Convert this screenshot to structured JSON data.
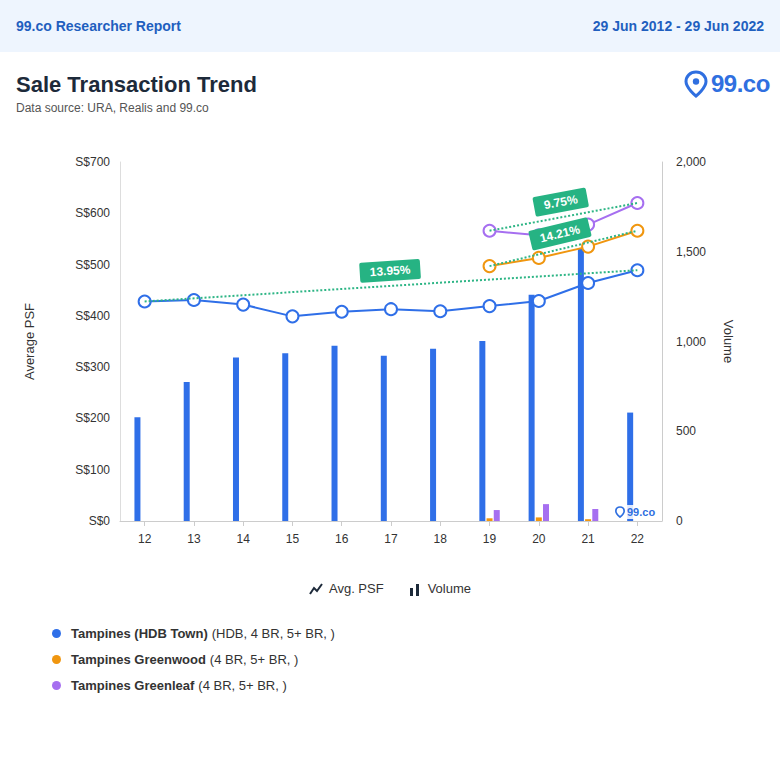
{
  "chart_data": {
    "type": "line",
    "header": {
      "report": "99.co Researcher Report",
      "period": "29 Jun 2012 - 29 Jun 2022"
    },
    "title": "Sale Transaction Trend",
    "subtitle": "Data source: URA, Realis and 99.co",
    "logo": "99.co",
    "watermark": "99.co",
    "legend_items": [
      "Avg. PSF",
      "Volume"
    ],
    "y_label": "Average PSF",
    "y2_label": "Volume",
    "categories": [
      "12",
      "13",
      "14",
      "15",
      "16",
      "17",
      "18",
      "19",
      "20",
      "21",
      "22"
    ],
    "ylim": [
      0,
      700
    ],
    "yticks": [
      {
        "value": 0,
        "label": "S$0"
      },
      {
        "value": 100,
        "label": "S$100"
      },
      {
        "value": 200,
        "label": "S$200"
      },
      {
        "value": 300,
        "label": "S$300"
      },
      {
        "value": 400,
        "label": "S$400"
      },
      {
        "value": 500,
        "label": "S$500"
      },
      {
        "value": 600,
        "label": "S$600"
      },
      {
        "value": 700,
        "label": "S$700"
      }
    ],
    "y2lim": [
      0,
      2000
    ],
    "y2ticks": [
      0,
      500,
      {
        "value": 1000,
        "label": "1,000"
      },
      {
        "value": 1500,
        "label": "1,500"
      },
      {
        "value": 2000,
        "label": "2,000"
      }
    ],
    "grid": false,
    "series": [
      {
        "name": "Tampines (HDB Town)",
        "detail": "(HDB, 4 BR, 5+ BR, )",
        "color": "#2f6fe8",
        "marker": "hollow_circle",
        "line_style": "solid",
        "values": [
          428,
          431,
          422,
          399,
          408,
          413,
          409,
          419,
          429,
          464,
          489
        ],
        "volume": [
          578,
          775,
          911,
          934,
          977,
          920,
          960,
          1003,
          1260,
          1520,
          604
        ],
        "trend_label": "13.95%"
      },
      {
        "name": "Tampines Greenwood",
        "detail": "(4 BR, 5+ BR, )",
        "color": "#f0960f",
        "marker": "hollow_circle",
        "line_style": "solid",
        "values": [
          null,
          null,
          null,
          null,
          null,
          null,
          null,
          497,
          513,
          535,
          566
        ],
        "volume": [
          null,
          null,
          null,
          null,
          null,
          null,
          null,
          15,
          20,
          10,
          null
        ],
        "trend_label": "14.21%"
      },
      {
        "name": "Tampines Greenleaf",
        "detail": "(4 BR, 5+ BR, )",
        "color": "#a66ff0",
        "marker": "hollow_circle",
        "line_style": "solid",
        "values": [
          null,
          null,
          null,
          null,
          null,
          null,
          null,
          566,
          557,
          578,
          620
        ],
        "volume": [
          null,
          null,
          null,
          null,
          null,
          null,
          null,
          61,
          94,
          67,
          null
        ],
        "trend_label": "9.75%"
      }
    ]
  }
}
